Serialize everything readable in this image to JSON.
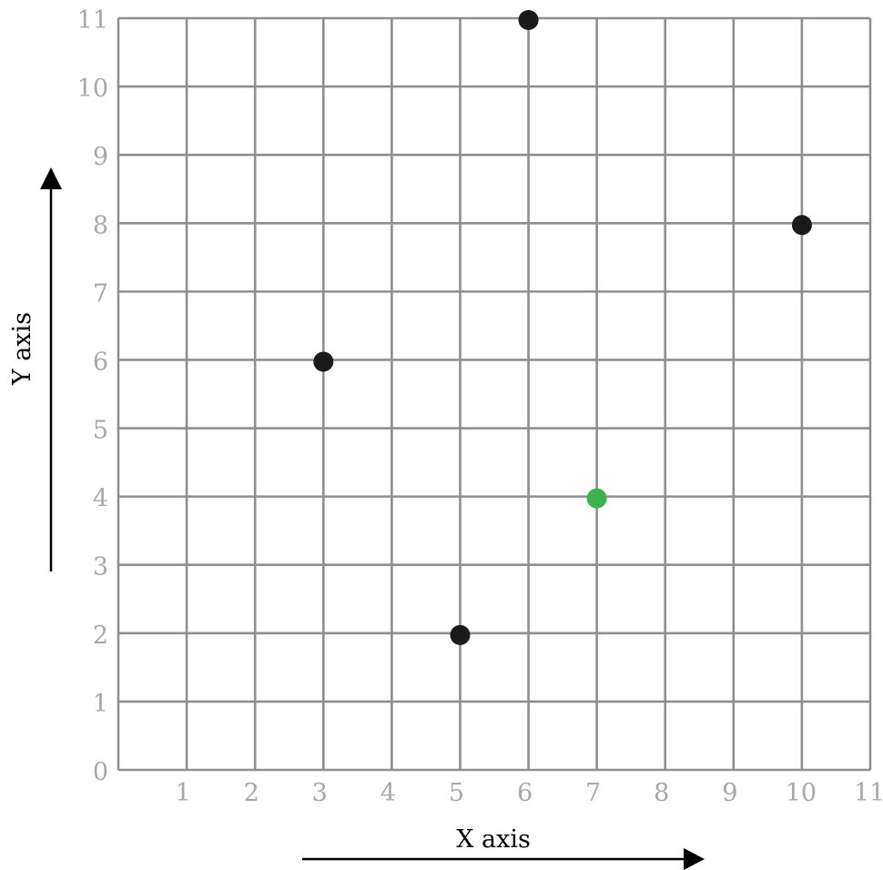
{
  "chart_data": {
    "type": "scatter",
    "xlabel": "X axis",
    "ylabel": "Y axis",
    "xlim": [
      0,
      11
    ],
    "ylim": [
      0,
      11
    ],
    "x_ticks": [
      1,
      2,
      3,
      4,
      5,
      6,
      7,
      8,
      9,
      10,
      11
    ],
    "y_ticks": [
      0,
      1,
      2,
      3,
      4,
      5,
      6,
      7,
      8,
      9,
      10,
      11
    ],
    "grid": true,
    "points": [
      {
        "x": 3,
        "y": 6,
        "color": "#1a1a1a"
      },
      {
        "x": 5,
        "y": 2,
        "color": "#1a1a1a"
      },
      {
        "x": 6,
        "y": 11,
        "color": "#1a1a1a"
      },
      {
        "x": 7,
        "y": 4,
        "color": "#3bb34a"
      },
      {
        "x": 10,
        "y": 8,
        "color": "#1a1a1a"
      }
    ],
    "colors": {
      "grid": "#8f8f8f",
      "tick_label": "#a8a8a8"
    }
  }
}
